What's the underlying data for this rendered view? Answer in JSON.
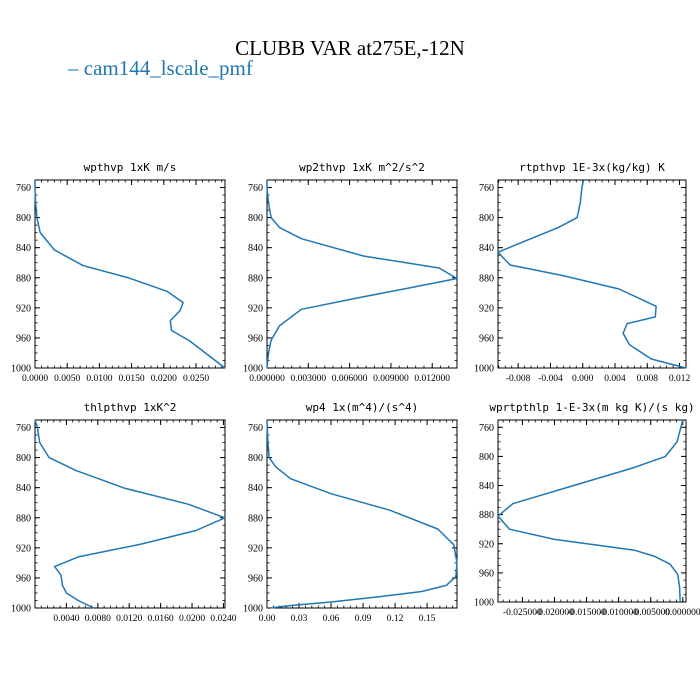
{
  "title": "CLUBB VAR at275E,-12N",
  "legend": {
    "label": "cam144_lscale_pmf",
    "marker": "–",
    "color": "#1f77b4"
  },
  "chart_data": [
    {
      "type": "line",
      "title": "wpthvp   1xK m/s",
      "xlim": [
        0,
        0.0295
      ],
      "ylim": [
        1000,
        750
      ],
      "y_inverted": true,
      "xticks": [
        0.0,
        0.005,
        0.01,
        0.015,
        0.02,
        0.025
      ],
      "xtick_labels": [
        "0.0000",
        "0.0050",
        "0.0100",
        "0.0150",
        "0.0200",
        "0.0250"
      ],
      "yticks": [
        760,
        800,
        840,
        880,
        920,
        960,
        1000
      ],
      "ytick_labels": [
        "760",
        "800",
        "840",
        "880",
        "920",
        "960",
        "1000"
      ],
      "series": [
        {
          "color": "#1f77b4",
          "x": [
            0.0,
            0.0,
            0.0001,
            0.0003,
            0.0008,
            0.003,
            0.0075,
            0.0145,
            0.0205,
            0.023,
            0.0225,
            0.021,
            0.0212,
            0.024,
            0.0295
          ],
          "y": [
            750,
            760,
            780,
            800,
            820,
            843,
            864,
            880,
            898,
            913,
            924,
            937,
            950,
            964,
            1000
          ]
        }
      ]
    },
    {
      "type": "line",
      "title": "wp2thvp   1xK m^2/s^2",
      "xlim": [
        0,
        0.0138
      ],
      "ylim": [
        1000,
        750
      ],
      "y_inverted": true,
      "xticks": [
        0.0,
        0.003,
        0.006,
        0.009,
        0.012
      ],
      "xtick_labels": [
        "0.000000",
        "0.003000",
        "0.006000",
        "0.009000",
        "0.012000"
      ],
      "yticks": [
        760,
        800,
        840,
        880,
        920,
        960,
        1000
      ],
      "ytick_labels": [
        "760",
        "800",
        "840",
        "880",
        "920",
        "960",
        "1000"
      ],
      "series": [
        {
          "color": "#1f77b4",
          "x": [
            0.0,
            0.0,
            0.0001,
            0.0003,
            0.0009,
            0.0025,
            0.007,
            0.0125,
            0.0138,
            0.0105,
            0.0065,
            0.0025,
            0.0009,
            0.0003,
            0.0001,
            0.0
          ],
          "y": [
            750,
            760,
            780,
            800,
            813,
            828,
            851,
            867,
            881,
            893,
            907,
            922,
            944,
            963,
            980,
            1000
          ]
        }
      ]
    },
    {
      "type": "line",
      "title": "rtpthvp   1E-3x(kg/kg) K",
      "xlim": [
        -0.0105,
        0.0128
      ],
      "ylim": [
        1000,
        750
      ],
      "y_inverted": true,
      "xticks": [
        -0.008,
        -0.004,
        0.0,
        0.004,
        0.008,
        0.012
      ],
      "xtick_labels": [
        "-0.008",
        "-0.004",
        "0.000",
        "0.004",
        "0.008",
        "0.012"
      ],
      "yticks": [
        760,
        800,
        840,
        880,
        920,
        960,
        1000
      ],
      "ytick_labels": [
        "760",
        "800",
        "840",
        "880",
        "920",
        "960",
        "1000"
      ],
      "series": [
        {
          "color": "#1f77b4",
          "x": [
            0.0001,
            -0.0001,
            -0.0003,
            -0.0007,
            -0.003,
            -0.0071,
            -0.0105,
            -0.009,
            -0.0025,
            0.0045,
            0.0091,
            0.009,
            0.0055,
            0.005,
            0.0058,
            0.0085,
            0.0128
          ],
          "y": [
            750,
            760,
            780,
            800,
            813,
            831,
            846,
            863,
            877,
            895,
            918,
            932,
            941,
            954,
            969,
            988,
            1000
          ]
        }
      ]
    },
    {
      "type": "line",
      "title": "thlpthvp   1xK^2",
      "xlim": [
        0,
        0.0242
      ],
      "ylim": [
        1000,
        750
      ],
      "y_inverted": true,
      "xticks": [
        0.004,
        0.008,
        0.012,
        0.016,
        0.02,
        0.024
      ],
      "xtick_labels": [
        "0.0040",
        "0.0080",
        "0.0120",
        "0.0160",
        "0.0200",
        "0.0240"
      ],
      "yticks": [
        760,
        800,
        840,
        880,
        920,
        960,
        1000
      ],
      "ytick_labels": [
        "760",
        "800",
        "840",
        "880",
        "920",
        "960",
        "1000"
      ],
      "series": [
        {
          "color": "#1f77b4",
          "x": [
            0.0,
            0.0003,
            0.0006,
            0.0018,
            0.0052,
            0.0115,
            0.0195,
            0.0242,
            0.0205,
            0.0135,
            0.0055,
            0.0025,
            0.0033,
            0.0035,
            0.004,
            0.0055,
            0.0075
          ],
          "y": [
            750,
            760,
            780,
            800,
            817,
            841,
            862,
            880,
            897,
            915,
            932,
            945,
            956,
            970,
            980,
            990,
            1000
          ]
        }
      ]
    },
    {
      "type": "line",
      "title": "wp4   1x(m^4)/(s^4)",
      "xlim": [
        0,
        0.178
      ],
      "ylim": [
        1000,
        750
      ],
      "y_inverted": true,
      "xticks": [
        0.0,
        0.03,
        0.06,
        0.09,
        0.12,
        0.15
      ],
      "xtick_labels": [
        "0.00",
        "0.03",
        "0.06",
        "0.09",
        "0.12",
        "0.15"
      ],
      "yticks": [
        760,
        800,
        840,
        880,
        920,
        960,
        1000
      ],
      "ytick_labels": [
        "760",
        "800",
        "840",
        "880",
        "920",
        "960",
        "1000"
      ],
      "series": [
        {
          "color": "#1f77b4",
          "x": [
            0.0,
            0.0003,
            0.0008,
            0.002,
            0.008,
            0.022,
            0.06,
            0.115,
            0.16,
            0.175,
            0.178,
            0.177,
            0.168,
            0.145,
            0.105,
            0.06,
            0.02,
            0.003
          ],
          "y": [
            750,
            760,
            780,
            800,
            812,
            828,
            848,
            870,
            895,
            916,
            940,
            958,
            970,
            978,
            985,
            992,
            997,
            1000
          ]
        }
      ]
    },
    {
      "type": "line",
      "title": "wprtpthlp   1-E-3x(m kg K)/(s kg)",
      "xlim": [
        -0.0288,
        0.0005
      ],
      "ylim": [
        1000,
        750
      ],
      "y_inverted": true,
      "xticks": [
        -0.025,
        -0.02,
        -0.015,
        -0.01,
        -0.005,
        0.0
      ],
      "xtick_labels": [
        "-0.025000",
        "-0.020000",
        "-0.015000",
        "-0.010000",
        "-0.005000",
        "0.000000"
      ],
      "yticks": [
        760,
        800,
        840,
        880,
        920,
        960,
        1000
      ],
      "ytick_labels": [
        "760",
        "800",
        "840",
        "880",
        "920",
        "960",
        "1000"
      ],
      "series": [
        {
          "color": "#1f77b4",
          "x": [
            0.0,
            -0.0003,
            -0.0009,
            -0.0027,
            -0.0078,
            -0.017,
            -0.0265,
            -0.0288,
            -0.027,
            -0.02,
            -0.0115,
            -0.0075,
            -0.0045,
            -0.002,
            -0.0008,
            -0.0005,
            -0.0004
          ],
          "y": [
            750,
            760,
            780,
            800,
            816,
            840,
            865,
            882,
            900,
            914,
            924,
            929,
            937,
            948,
            962,
            980,
            1000
          ]
        }
      ]
    }
  ]
}
